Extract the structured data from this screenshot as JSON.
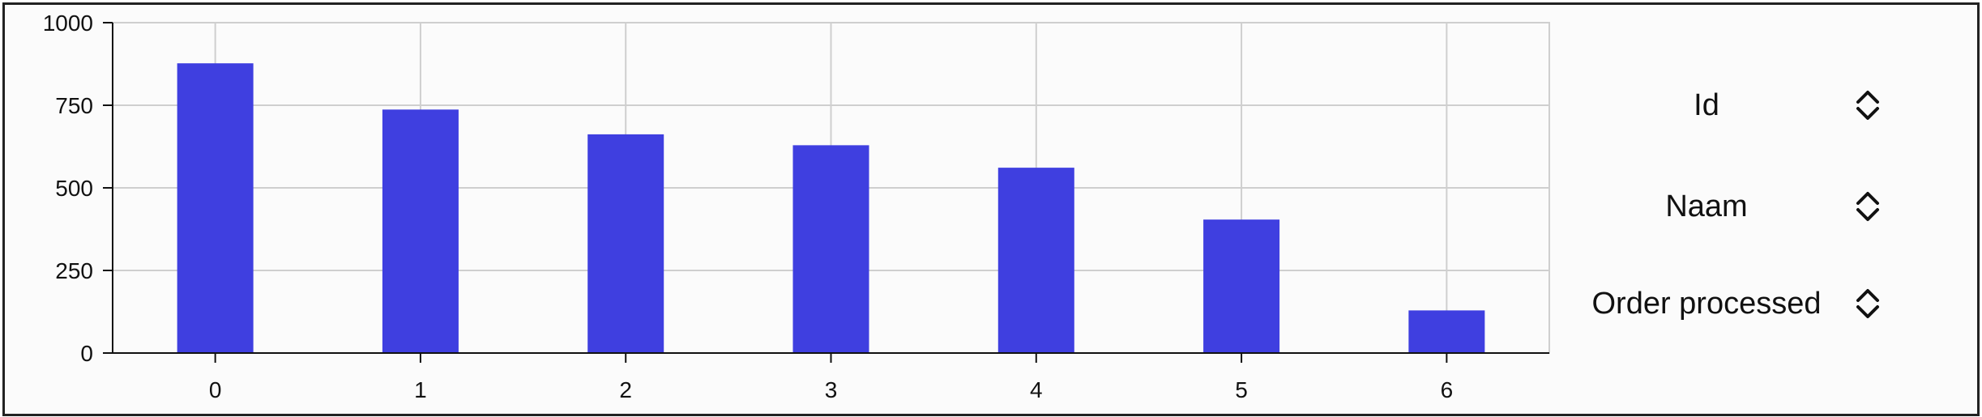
{
  "chart_data": {
    "type": "bar",
    "title": "",
    "xlabel": "",
    "ylabel": "",
    "categories": [
      "0",
      "1",
      "2",
      "3",
      "4",
      "5",
      "6"
    ],
    "values": [
      877,
      737,
      662,
      629,
      561,
      404,
      129
    ],
    "ylim": [
      0,
      1000
    ],
    "yticks": [
      0,
      250,
      500,
      750,
      1000
    ],
    "grid": true,
    "bar_color": "#3f3fe0",
    "grid_color": "#cfcfcf"
  },
  "sort_controls": [
    {
      "label": "Id",
      "icon": "sort-updown-icon"
    },
    {
      "label": "Naam",
      "icon": "sort-updown-icon"
    },
    {
      "label": "Order processed",
      "icon": "sort-updown-icon"
    }
  ]
}
